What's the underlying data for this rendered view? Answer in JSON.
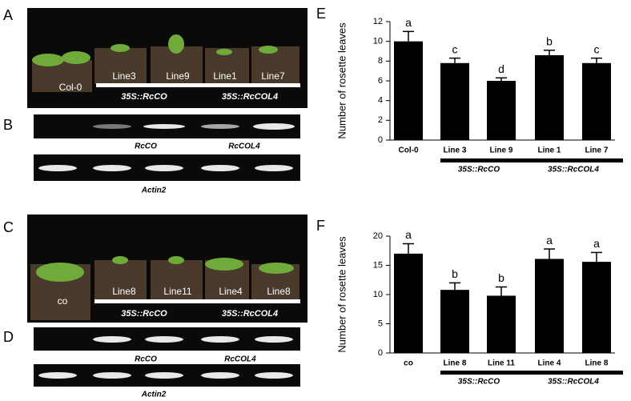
{
  "panels": {
    "A": {
      "letter": "A",
      "plants": [
        "Col-0",
        "Line3",
        "Line9",
        "Line1",
        "Line7"
      ],
      "groups": [
        "35S::RcCO",
        "35S::RcCOL4"
      ]
    },
    "B": {
      "letter": "B",
      "genes": [
        "RcCO",
        "RcCOL4"
      ],
      "control": "Actin2"
    },
    "C": {
      "letter": "C",
      "plants": [
        "co",
        "Line8",
        "Line11",
        "Line4",
        "Line8"
      ],
      "groups": [
        "35S::RcCO",
        "35S::RcCOL4"
      ]
    },
    "D": {
      "letter": "D",
      "genes": [
        "RcCO",
        "RcCOL4"
      ],
      "control": "Actin2"
    }
  },
  "chart_data": [
    {
      "type": "bar",
      "panel": "E",
      "ylabel": "Number of rosette leaves",
      "categories": [
        "Col-0",
        "Line 3",
        "Line 9",
        "Line 1",
        "Line 7"
      ],
      "values": [
        10,
        7.8,
        6.0,
        8.6,
        7.8
      ],
      "errors": [
        1.0,
        0.5,
        0.3,
        0.5,
        0.5
      ],
      "annotations": [
        "a",
        "c",
        "d",
        "b",
        "c"
      ],
      "groups": [
        "35S::RcCO",
        "35S::RcCOL4"
      ],
      "color": "#000000",
      "ylim": [
        0,
        12
      ],
      "yticks": [
        0,
        2,
        4,
        6,
        8,
        10,
        12
      ]
    },
    {
      "type": "bar",
      "panel": "F",
      "ylabel": "Number of rosette leaves",
      "categories": [
        "co",
        "Line 8",
        "Line 11",
        "Line 4",
        "Line 8"
      ],
      "values": [
        17,
        10.8,
        9.8,
        16.1,
        15.6
      ],
      "errors": [
        1.7,
        1.2,
        1.5,
        1.7,
        1.6
      ],
      "annotations": [
        "a",
        "b",
        "b",
        "a",
        "a"
      ],
      "groups": [
        "35S::RcCO",
        "35S::RcCOL4"
      ],
      "color": "#000000",
      "ylim": [
        0,
        20
      ],
      "yticks": [
        0,
        5,
        10,
        15,
        20
      ]
    }
  ]
}
